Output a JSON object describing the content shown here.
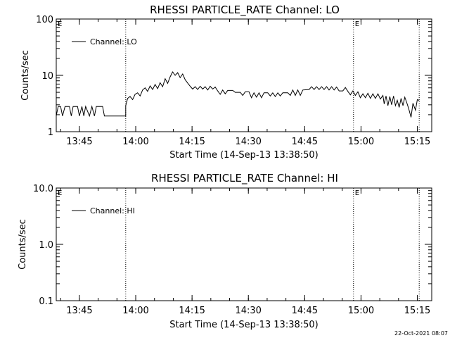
{
  "footer": {
    "timestamp": "22-Oct-2021 08:07"
  },
  "chart_data": [
    {
      "type": "line",
      "title": "RHESSI PARTICLE_RATE Channel: LO",
      "xlabel": "Start Time (14-Sep-13 13:38:50)",
      "ylabel": "Counts/sec",
      "yscale": "log",
      "ylim": [
        1,
        100
      ],
      "xlim": [
        "13:38:50",
        "15:18:50"
      ],
      "xticks": [
        "13:45",
        "14:00",
        "14:15",
        "14:30",
        "14:45",
        "15:00",
        "15:15"
      ],
      "yticks": [
        "1",
        "10",
        "100"
      ],
      "grid": false,
      "legend_position": "top-left",
      "markers": [
        {
          "label": "",
          "time": "13:57:20"
        },
        {
          "label": "E",
          "time": "14:58:00"
        },
        {
          "label": "",
          "time": "15:15:30"
        },
        {
          "label": "E",
          "time": "13:38:50"
        }
      ],
      "series": [
        {
          "name": "Channel: LO",
          "points": [
            [
              "13:38:50",
              1.9
            ],
            [
              "13:39:20",
              2.8
            ],
            [
              "13:40:00",
              2.8
            ],
            [
              "13:40:30",
              1.9
            ],
            [
              "13:41:10",
              2.8
            ],
            [
              "13:42:20",
              2.8
            ],
            [
              "13:42:50",
              1.9
            ],
            [
              "13:43:20",
              2.8
            ],
            [
              "13:44:30",
              2.8
            ],
            [
              "13:45:00",
              1.9
            ],
            [
              "13:45:40",
              2.8
            ],
            [
              "13:46:10",
              1.9
            ],
            [
              "13:46:40",
              2.8
            ],
            [
              "13:47:40",
              1.9
            ],
            [
              "13:48:20",
              2.8
            ],
            [
              "13:49:00",
              1.9
            ],
            [
              "13:49:30",
              2.8
            ],
            [
              "13:51:10",
              2.8
            ],
            [
              "13:51:40",
              1.9
            ],
            [
              "13:52:20",
              1.9
            ],
            [
              "13:57:20",
              1.9
            ],
            [
              "13:57:20",
              2.9
            ],
            [
              "13:57:50",
              3.9
            ],
            [
              "13:58:30",
              4.2
            ],
            [
              "13:59:10",
              3.7
            ],
            [
              "13:59:50",
              4.6
            ],
            [
              "14:00:30",
              4.9
            ],
            [
              "14:01:10",
              4.3
            ],
            [
              "14:01:50",
              5.5
            ],
            [
              "14:02:30",
              6.0
            ],
            [
              "14:03:10",
              5.2
            ],
            [
              "14:03:50",
              6.5
            ],
            [
              "14:04:30",
              5.6
            ],
            [
              "14:05:10",
              6.9
            ],
            [
              "14:05:50",
              5.8
            ],
            [
              "14:06:30",
              7.4
            ],
            [
              "14:07:10",
              6.3
            ],
            [
              "14:07:50",
              8.7
            ],
            [
              "14:08:30",
              7.2
            ],
            [
              "14:09:10",
              9.4
            ],
            [
              "14:09:50",
              11.5
            ],
            [
              "14:10:30",
              10.0
            ],
            [
              "14:11:10",
              11.2
            ],
            [
              "14:11:50",
              9.1
            ],
            [
              "14:12:30",
              10.6
            ],
            [
              "14:13:10",
              8.4
            ],
            [
              "14:13:50",
              7.3
            ],
            [
              "14:14:30",
              6.4
            ],
            [
              "14:15:10",
              5.7
            ],
            [
              "14:15:50",
              6.3
            ],
            [
              "14:16:30",
              5.6
            ],
            [
              "14:17:10",
              6.4
            ],
            [
              "14:17:50",
              5.7
            ],
            [
              "14:18:30",
              6.3
            ],
            [
              "14:19:10",
              5.5
            ],
            [
              "14:19:50",
              6.4
            ],
            [
              "14:20:30",
              5.7
            ],
            [
              "14:21:10",
              6.2
            ],
            [
              "14:21:50",
              5.3
            ],
            [
              "14:22:30",
              4.6
            ],
            [
              "14:23:10",
              5.5
            ],
            [
              "14:23:50",
              4.7
            ],
            [
              "14:24:30",
              5.4
            ],
            [
              "14:25:50",
              5.4
            ],
            [
              "14:26:30",
              5.0
            ],
            [
              "14:27:50",
              5.0
            ],
            [
              "14:28:30",
              4.4
            ],
            [
              "14:29:10",
              5.1
            ],
            [
              "14:30:10",
              5.1
            ],
            [
              "14:30:50",
              4.0
            ],
            [
              "14:31:30",
              4.9
            ],
            [
              "14:32:10",
              4.1
            ],
            [
              "14:32:50",
              4.9
            ],
            [
              "14:33:30",
              4.0
            ],
            [
              "14:34:10",
              4.9
            ],
            [
              "14:35:10",
              4.9
            ],
            [
              "14:35:50",
              4.3
            ],
            [
              "14:36:30",
              4.9
            ],
            [
              "14:37:10",
              4.2
            ],
            [
              "14:37:50",
              4.9
            ],
            [
              "14:38:30",
              4.3
            ],
            [
              "14:39:10",
              4.9
            ],
            [
              "14:40:30",
              4.9
            ],
            [
              "14:41:10",
              4.4
            ],
            [
              "14:41:50",
              5.5
            ],
            [
              "14:42:30",
              4.4
            ],
            [
              "14:43:10",
              5.5
            ],
            [
              "14:43:50",
              4.4
            ],
            [
              "14:44:30",
              5.5
            ],
            [
              "14:46:10",
              5.6
            ],
            [
              "14:46:50",
              6.3
            ],
            [
              "14:47:30",
              5.6
            ],
            [
              "14:48:10",
              6.3
            ],
            [
              "14:48:50",
              5.6
            ],
            [
              "14:49:30",
              6.3
            ],
            [
              "14:50:10",
              5.6
            ],
            [
              "14:50:50",
              6.3
            ],
            [
              "14:51:30",
              5.5
            ],
            [
              "14:52:10",
              6.3
            ],
            [
              "14:52:50",
              5.5
            ],
            [
              "14:53:30",
              6.2
            ],
            [
              "14:54:10",
              5.3
            ],
            [
              "14:55:10",
              5.3
            ],
            [
              "14:55:50",
              6.1
            ],
            [
              "14:56:30",
              5.2
            ],
            [
              "14:57:10",
              4.5
            ],
            [
              "14:57:50",
              5.3
            ],
            [
              "14:58:30",
              4.4
            ],
            [
              "14:59:10",
              5.1
            ],
            [
              "14:59:50",
              4.0
            ],
            [
              "15:00:30",
              4.7
            ],
            [
              "15:01:10",
              4.0
            ],
            [
              "15:01:50",
              4.8
            ],
            [
              "15:02:30",
              3.9
            ],
            [
              "15:03:10",
              4.7
            ],
            [
              "15:03:50",
              3.9
            ],
            [
              "15:04:30",
              4.7
            ],
            [
              "15:05:10",
              3.8
            ],
            [
              "15:05:50",
              4.4
            ],
            [
              "15:06:10",
              3.1
            ],
            [
              "15:06:40",
              4.3
            ],
            [
              "15:07:10",
              2.9
            ],
            [
              "15:07:40",
              4.2
            ],
            [
              "15:08:10",
              3.0
            ],
            [
              "15:08:40",
              4.3
            ],
            [
              "15:09:10",
              2.9
            ],
            [
              "15:09:40",
              3.6
            ],
            [
              "15:10:10",
              2.7
            ],
            [
              "15:10:40",
              3.9
            ],
            [
              "15:11:10",
              2.9
            ],
            [
              "15:11:40",
              4.1
            ],
            [
              "15:12:10",
              3.3
            ],
            [
              "15:12:40",
              2.6
            ],
            [
              "15:13:20",
              1.8
            ],
            [
              "15:13:50",
              3.2
            ],
            [
              "15:14:30",
              2.4
            ],
            [
              "15:15:00",
              3.7
            ],
            [
              "15:15:30",
              3.6
            ]
          ]
        }
      ]
    },
    {
      "type": "line",
      "title": "RHESSI PARTICLE_RATE Channel: HI",
      "xlabel": "Start Time (14-Sep-13 13:38:50)",
      "ylabel": "Counts/sec",
      "yscale": "log",
      "ylim": [
        0.1,
        10.0
      ],
      "xlim": [
        "13:38:50",
        "15:18:50"
      ],
      "xticks": [
        "13:45",
        "14:00",
        "14:15",
        "14:30",
        "14:45",
        "15:00",
        "15:15"
      ],
      "yticks": [
        "0.1",
        "1.0",
        "10.0"
      ],
      "grid": false,
      "legend_position": "top-left",
      "markers": [
        {
          "label": "",
          "time": "13:57:20"
        },
        {
          "label": "E",
          "time": "14:58:00"
        },
        {
          "label": "",
          "time": "15:15:30"
        },
        {
          "label": "E",
          "time": "13:38:50"
        }
      ],
      "series": [
        {
          "name": "Channel: HI",
          "points": []
        }
      ]
    }
  ]
}
